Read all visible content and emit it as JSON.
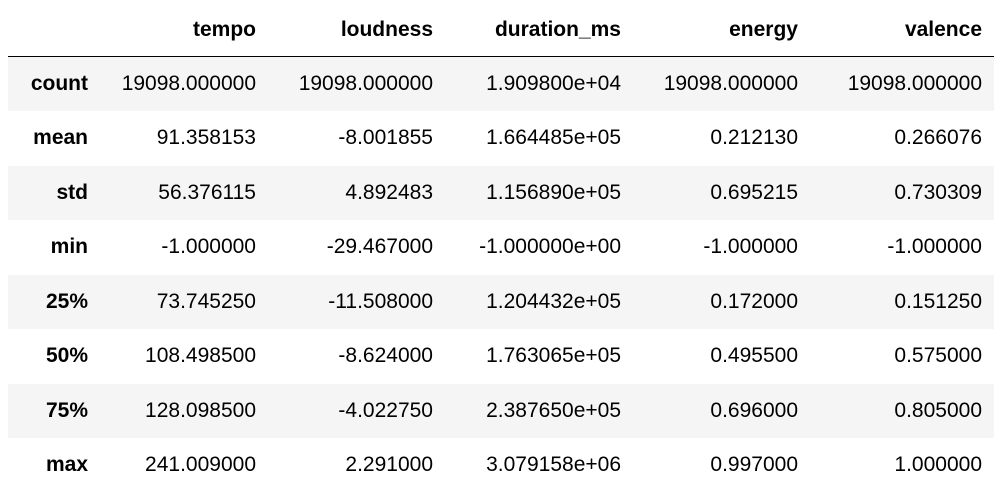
{
  "table": {
    "index_header": "",
    "columns": [
      "tempo",
      "loudness",
      "duration_ms",
      "energy",
      "valence"
    ],
    "rows": [
      {
        "label": "count",
        "values": [
          "19098.000000",
          "19098.000000",
          "1.909800e+04",
          "19098.000000",
          "19098.000000"
        ]
      },
      {
        "label": "mean",
        "values": [
          "91.358153",
          "-8.001855",
          "1.664485e+05",
          "0.212130",
          "0.266076"
        ]
      },
      {
        "label": "std",
        "values": [
          "56.376115",
          "4.892483",
          "1.156890e+05",
          "0.695215",
          "0.730309"
        ]
      },
      {
        "label": "min",
        "values": [
          "-1.000000",
          "-29.467000",
          "-1.000000e+00",
          "-1.000000",
          "-1.000000"
        ]
      },
      {
        "label": "25%",
        "values": [
          "73.745250",
          "-11.508000",
          "1.204432e+05",
          "0.172000",
          "0.151250"
        ]
      },
      {
        "label": "50%",
        "values": [
          "108.498500",
          "-8.624000",
          "1.763065e+05",
          "0.495500",
          "0.575000"
        ]
      },
      {
        "label": "75%",
        "values": [
          "128.098500",
          "-4.022750",
          "2.387650e+05",
          "0.696000",
          "0.805000"
        ]
      },
      {
        "label": "max",
        "values": [
          "241.009000",
          "2.291000",
          "3.079158e+06",
          "0.997000",
          "1.000000"
        ]
      }
    ]
  }
}
